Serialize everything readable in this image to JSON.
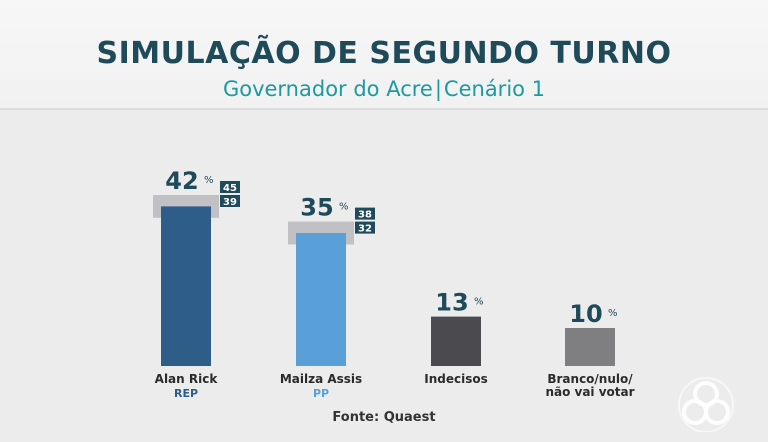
{
  "title": "SIMULAÇÃO DE SEGUNDO TURNO",
  "subtitle_left": "Governador do Acre",
  "subtitle_right": "Cenário 1",
  "source": "Fonte: Quaest",
  "chart_data": {
    "type": "bar",
    "title": "SIMULAÇÃO DE SEGUNDO TURNO",
    "subtitle": "Governador do Acre | Cenário 1",
    "categories": [
      "Alan Rick",
      "Mailza Assis",
      "Indecisos",
      "Branco/nulo/\nnão vai votar"
    ],
    "category_lines": [
      [
        "Alan Rick"
      ],
      [
        "Mailza Assis"
      ],
      [
        "Indecisos"
      ],
      [
        "Branco/nulo/",
        "não vai votar"
      ]
    ],
    "parties": [
      "REP",
      "PP",
      "",
      ""
    ],
    "values": [
      42,
      35,
      13,
      10
    ],
    "value_labels": [
      "42",
      "35",
      "13",
      "10"
    ],
    "percent_sign": "%",
    "margin_of_error": [
      {
        "high": 45,
        "low": 39
      },
      {
        "high": 38,
        "low": 32
      },
      null,
      null
    ],
    "colors": [
      "#2e5d8a",
      "#5aa0d8",
      "#4b4b4f",
      "#7f7f82"
    ],
    "party_colors": [
      "#2e5d8a",
      "#5aa0d8",
      "",
      ""
    ],
    "label_color": "#1f4a5a",
    "ylim": [
      0,
      50
    ],
    "grid": false,
    "legend": "none"
  }
}
